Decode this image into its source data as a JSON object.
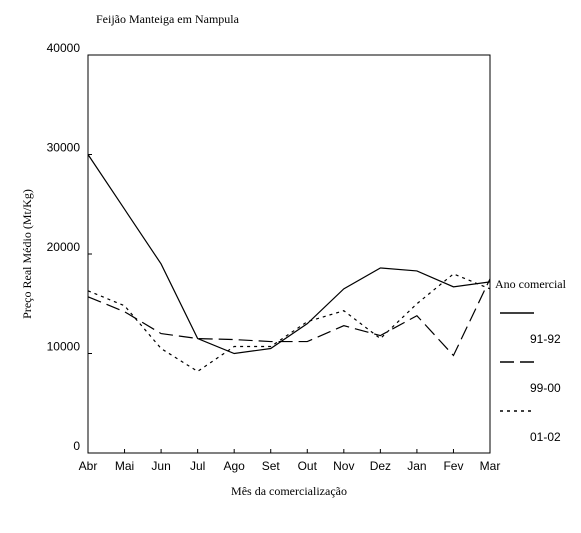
{
  "chart_data": {
    "type": "line",
    "title": "Feijão Manteiga em Nampula",
    "x_label": "Mês da comercialização",
    "y_label": "Preço Real Médio (Mt/Kg)",
    "legend_title": "Ano comercial",
    "categories": [
      "Abr",
      "Mai",
      "Jun",
      "Jul",
      "Ago",
      "Set",
      "Out",
      "Nov",
      "Dez",
      "Jan",
      "Fev",
      "Mar"
    ],
    "series": [
      {
        "name": "91-92",
        "color": "#000000",
        "values": [
          30000,
          24500,
          19000,
          11500,
          10000,
          10500,
          13000,
          16500,
          18600,
          18300,
          16700,
          17200
        ]
      },
      {
        "name": "99-00",
        "color": "#000000",
        "values": [
          15700,
          14200,
          12000,
          11500,
          11400,
          11200,
          11200,
          12800,
          11800,
          13800,
          9800,
          17500
        ]
      },
      {
        "name": "01-02",
        "color": "#000000",
        "values": [
          16300,
          14800,
          10500,
          8200,
          10700,
          10700,
          13200,
          14300,
          11500,
          15000,
          18000,
          16500
        ]
      }
    ],
    "ylim": [
      0,
      40000
    ],
    "yticks": [
      0,
      10000,
      20000,
      30000,
      40000
    ]
  }
}
